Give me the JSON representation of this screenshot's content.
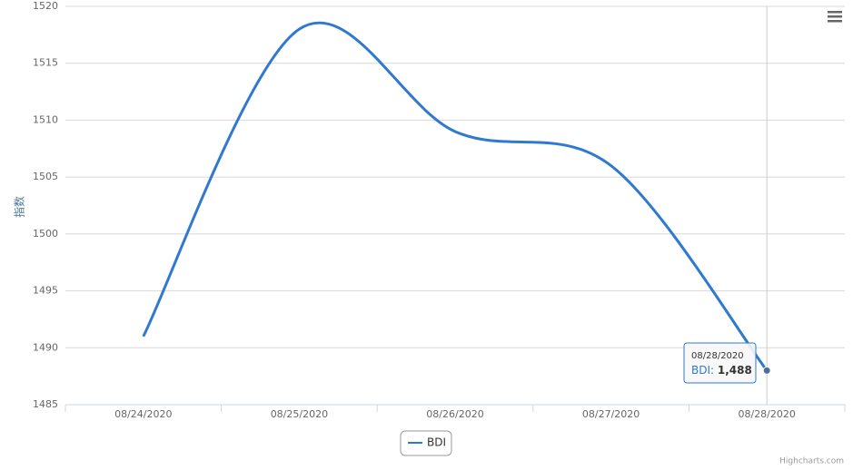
{
  "chart_data": {
    "type": "line",
    "y_axis_label": "指数",
    "categories": [
      "08/24/2020",
      "08/25/2020",
      "08/26/2020",
      "08/27/2020",
      "08/28/2020"
    ],
    "series": [
      {
        "name": "BDI",
        "color": "#3079d0",
        "values": [
          1491,
          1518,
          1509,
          1506,
          1488
        ],
        "value_labels": [
          null,
          null,
          null,
          null,
          "1,488"
        ]
      }
    ],
    "ylim": [
      1485,
      1520
    ],
    "yticks": [
      1485,
      1490,
      1495,
      1500,
      1505,
      1510,
      1515,
      1520
    ],
    "grid": true,
    "legend": "bottom",
    "credits": "Highcharts.com"
  }
}
